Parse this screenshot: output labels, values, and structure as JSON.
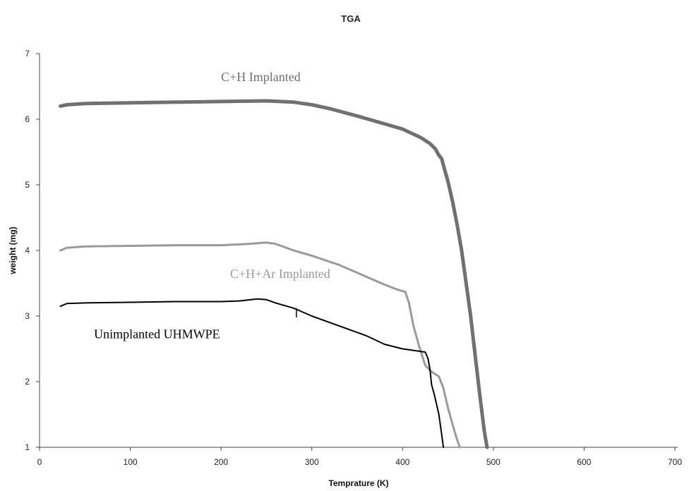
{
  "chart_data": {
    "type": "line",
    "title": "TGA",
    "xlabel": "Temprature (K)",
    "ylabel": "weight (mg)",
    "xlim": [
      0,
      700
    ],
    "ylim": [
      1,
      7
    ],
    "xticks": [
      "0",
      "100",
      "200",
      "300",
      "400",
      "500",
      "600",
      "700"
    ],
    "yticks": [
      "1",
      "2",
      "3",
      "4",
      "5",
      "6",
      "7"
    ],
    "grid": false,
    "series": [
      {
        "name": "C+H Implanted",
        "color": "#707070",
        "x": [
          23,
          30,
          50,
          100,
          150,
          200,
          250,
          280,
          300,
          320,
          350,
          380,
          400,
          420,
          430,
          436,
          440,
          443,
          445,
          450,
          455,
          460,
          465,
          470,
          475,
          480,
          485,
          490,
          493
        ],
        "y": [
          6.2,
          6.22,
          6.24,
          6.25,
          6.26,
          6.27,
          6.28,
          6.26,
          6.22,
          6.16,
          6.05,
          5.93,
          5.85,
          5.72,
          5.63,
          5.55,
          5.45,
          5.4,
          5.3,
          5.05,
          4.75,
          4.4,
          4.0,
          3.5,
          3.0,
          2.4,
          1.8,
          1.25,
          1.0
        ]
      },
      {
        "name": "C+H+Ar Implanted",
        "color": "#9a9a9a",
        "x": [
          23,
          30,
          50,
          100,
          150,
          200,
          230,
          250,
          260,
          280,
          300,
          330,
          360,
          380,
          395,
          403,
          407,
          412,
          418,
          425,
          432,
          440,
          445,
          450,
          455,
          460,
          463
        ],
        "y": [
          4.0,
          4.04,
          4.06,
          4.07,
          4.08,
          4.08,
          4.1,
          4.12,
          4.1,
          4.0,
          3.92,
          3.78,
          3.6,
          3.48,
          3.4,
          3.37,
          3.2,
          2.85,
          2.55,
          2.25,
          2.15,
          2.08,
          1.9,
          1.6,
          1.35,
          1.12,
          1.0
        ]
      },
      {
        "name": "Unimplanted UHMWPE",
        "color": "#000000",
        "x": [
          23,
          30,
          50,
          100,
          150,
          200,
          220,
          240,
          250,
          260,
          280,
          300,
          330,
          360,
          380,
          400,
          415,
          425,
          428,
          430,
          432,
          435,
          440,
          443,
          445
        ],
        "y": [
          3.15,
          3.19,
          3.2,
          3.21,
          3.22,
          3.22,
          3.23,
          3.26,
          3.25,
          3.2,
          3.12,
          3.0,
          2.85,
          2.7,
          2.57,
          2.5,
          2.47,
          2.45,
          2.35,
          2.2,
          1.95,
          1.8,
          1.5,
          1.2,
          1.0
        ]
      }
    ],
    "annotations": [
      {
        "text": "C+H Implanted",
        "x": 200,
        "y": 6.58,
        "color": "#707070"
      },
      {
        "text": "C+H+Ar Implanted",
        "x": 210,
        "y": 3.58,
        "color": "#9a9a9a"
      },
      {
        "text": "Unimplanted UHMWPE",
        "x": 60,
        "y": 2.66,
        "color": "#000000"
      }
    ]
  }
}
